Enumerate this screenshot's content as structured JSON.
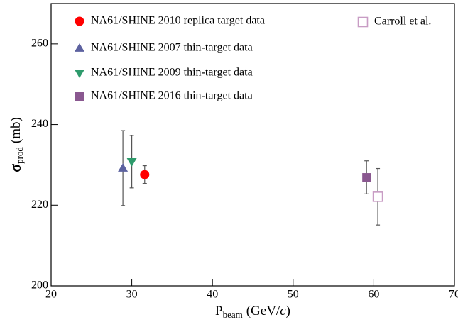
{
  "chart_data": {
    "type": "scatter",
    "xlabel": [
      "P",
      "beam",
      "(GeV/",
      "c",
      ")"
    ],
    "ylabel": [
      "σ",
      "prod",
      "(mb)"
    ],
    "xlim": [
      20,
      70
    ],
    "xticks": [
      20,
      30,
      40,
      50,
      60,
      70
    ],
    "ylim": [
      200,
      270
    ],
    "yticks": [
      200,
      220,
      240,
      260
    ],
    "series": [
      {
        "name": "NA61/SHINE 2010 replica target data",
        "color": "#ff0000",
        "marker": "circle",
        "x": [
          31.6
        ],
        "values": [
          227.6
        ],
        "errors": [
          2.2
        ]
      },
      {
        "name": "NA61/SHINE 2007 thin-target data",
        "color": "#5d62a0",
        "marker": "triangle-up",
        "x": [
          28.9
        ],
        "values": [
          229.2
        ],
        "errors": [
          9.3
        ]
      },
      {
        "name": "NA61/SHINE 2009 thin-target data",
        "color": "#2e9b6c",
        "marker": "triangle-down",
        "x": [
          30.0
        ],
        "values": [
          230.8
        ],
        "errors": [
          6.5
        ]
      },
      {
        "name": "NA61/SHINE 2016 thin-target data",
        "color": "#8a5890",
        "marker": "square",
        "x": [
          59.1
        ],
        "values": [
          226.9
        ],
        "errors": [
          4.1
        ]
      },
      {
        "name": "Carroll et al.",
        "color": "#c89cc4",
        "marker": "open-square",
        "x": [
          60.5
        ],
        "values": [
          222.1
        ],
        "errors": [
          7.0
        ]
      }
    ]
  }
}
